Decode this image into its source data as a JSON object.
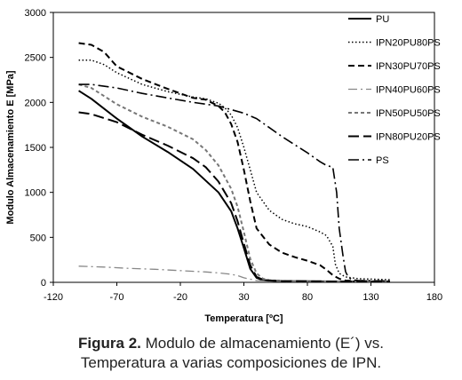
{
  "chart_data": {
    "type": "line",
    "xlabel": "Temperatura [ºC]",
    "ylabel": "Modulo Almacenamiento  E  [MPa]",
    "xlim": [
      -120,
      180
    ],
    "ylim": [
      0,
      3000
    ],
    "xticks": [
      -120,
      -70,
      -20,
      30,
      80,
      130,
      180
    ],
    "yticks": [
      0,
      500,
      1000,
      1500,
      2000,
      2500,
      3000
    ],
    "grid": false,
    "legend_position": "top-right",
    "series": [
      {
        "name": "PU",
        "color": "#000000",
        "dash": "solid",
        "x": [
          -100,
          -90,
          -70,
          -50,
          -30,
          -10,
          10,
          20,
          25,
          30,
          35,
          40,
          45,
          50,
          60,
          80,
          100,
          120,
          145
        ],
        "y": [
          2130,
          2040,
          1820,
          1620,
          1450,
          1260,
          1000,
          790,
          600,
          380,
          150,
          50,
          25,
          20,
          15,
          12,
          10,
          10,
          10
        ]
      },
      {
        "name": "IPN20PU80PS",
        "color": "#000000",
        "dash": "dot",
        "x": [
          -100,
          -90,
          -80,
          -70,
          -50,
          -30,
          -10,
          0,
          10,
          15,
          20,
          25,
          30,
          35,
          40,
          50,
          60,
          70,
          80,
          90,
          95,
          100,
          102,
          105,
          110,
          120,
          145
        ],
        "y": [
          2470,
          2470,
          2420,
          2330,
          2200,
          2120,
          2060,
          2040,
          1990,
          1940,
          1860,
          1720,
          1500,
          1250,
          1000,
          800,
          700,
          650,
          620,
          560,
          520,
          400,
          200,
          100,
          60,
          40,
          30
        ]
      },
      {
        "name": "IPN30PU70PS",
        "color": "#000000",
        "dash": "dash",
        "x": [
          -100,
          -90,
          -80,
          -70,
          -50,
          -30,
          -10,
          0,
          10,
          15,
          20,
          25,
          30,
          35,
          40,
          50,
          60,
          70,
          80,
          90,
          95,
          100,
          105,
          110,
          120,
          145
        ],
        "y": [
          2660,
          2640,
          2560,
          2400,
          2260,
          2150,
          2050,
          2030,
          1960,
          1890,
          1760,
          1560,
          1250,
          900,
          600,
          420,
          330,
          280,
          240,
          190,
          140,
          80,
          40,
          20,
          15,
          10
        ]
      },
      {
        "name": "IPN40PU60PS",
        "color": "#888888",
        "dash": "dashdot",
        "x": [
          -100,
          -80,
          -60,
          -40,
          -20,
          0,
          10,
          20,
          25,
          30,
          40,
          60,
          80,
          100,
          120,
          145
        ],
        "y": [
          180,
          170,
          155,
          145,
          130,
          115,
          105,
          90,
          75,
          50,
          20,
          10,
          10,
          10,
          10,
          10
        ]
      },
      {
        "name": "IPN50PU50PS",
        "color": "#777777",
        "dash": "shortdash",
        "x": [
          -100,
          -90,
          -70,
          -50,
          -30,
          -10,
          0,
          10,
          20,
          25,
          30,
          35,
          40,
          45,
          50,
          60,
          80,
          100,
          120,
          145
        ],
        "y": [
          2200,
          2160,
          1980,
          1840,
          1730,
          1590,
          1470,
          1300,
          1040,
          840,
          560,
          260,
          100,
          40,
          25,
          15,
          12,
          10,
          10,
          10
        ]
      },
      {
        "name": "IPN80PU20PS",
        "color": "#000000",
        "dash": "longdash",
        "x": [
          -100,
          -90,
          -70,
          -50,
          -30,
          -10,
          0,
          10,
          20,
          25,
          30,
          35,
          40,
          45,
          50,
          60,
          80,
          100,
          120,
          145
        ],
        "y": [
          1890,
          1870,
          1780,
          1640,
          1520,
          1380,
          1280,
          1120,
          880,
          680,
          430,
          190,
          60,
          30,
          20,
          15,
          12,
          10,
          10,
          10
        ]
      },
      {
        "name": "PS",
        "color": "#000000",
        "dash": "longdashdot",
        "x": [
          -100,
          -90,
          -70,
          -50,
          -30,
          -10,
          10,
          30,
          40,
          50,
          60,
          70,
          80,
          90,
          95,
          100,
          103,
          105,
          108,
          110,
          112,
          115,
          120,
          145
        ],
        "y": [
          2200,
          2200,
          2160,
          2100,
          2050,
          2000,
          1960,
          1880,
          1820,
          1720,
          1620,
          1530,
          1440,
          1340,
          1300,
          1280,
          1000,
          600,
          300,
          120,
          60,
          30,
          20,
          15
        ]
      }
    ]
  },
  "caption": {
    "label": "Figura 2.",
    "line1": " Modulo de almacenamiento (E´) vs.",
    "line2": "Temperatura a varias composiciones de IPN."
  }
}
